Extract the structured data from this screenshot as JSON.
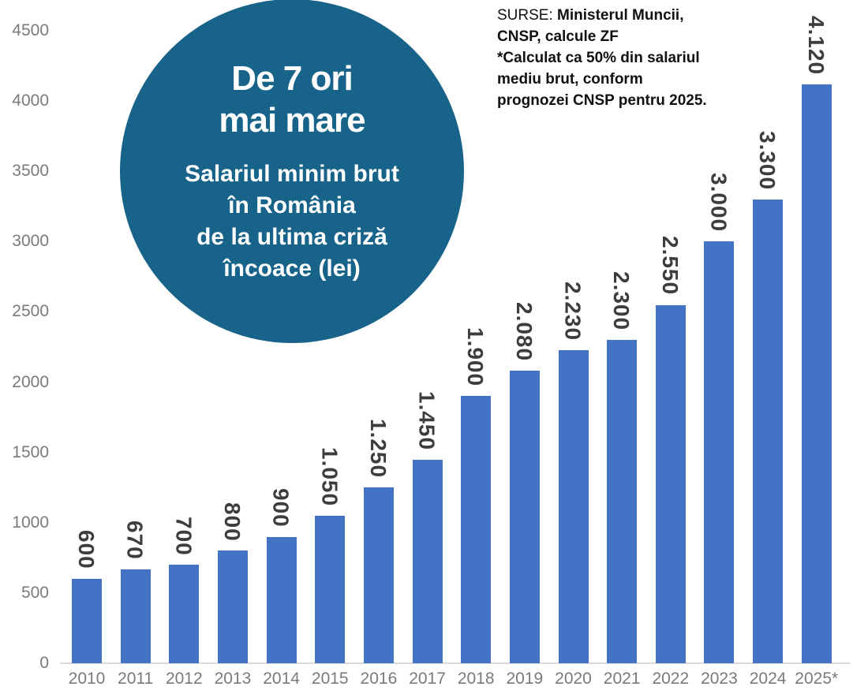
{
  "chart_data": {
    "type": "bar",
    "categories": [
      "2010",
      "2011",
      "2012",
      "2013",
      "2014",
      "2015",
      "2016",
      "2017",
      "2018",
      "2019",
      "2020",
      "2021",
      "2022",
      "2023",
      "2024",
      "2025*"
    ],
    "values": [
      600,
      670,
      700,
      800,
      900,
      1050,
      1250,
      1450,
      1900,
      2080,
      2230,
      2300,
      2550,
      3000,
      3300,
      4120
    ],
    "bar_labels": [
      "600",
      "670",
      "700",
      "800",
      "900",
      "1.050",
      "1.250",
      "1.450",
      "1.900",
      "2.080",
      "2.230",
      "2.300",
      "2.550",
      "3.000",
      "3.300",
      "4.120"
    ],
    "title": "De 7 ori mai mare",
    "subtitle": "Salariul minim brut în România de la ultima criză încoace (lei)",
    "xlabel": "",
    "ylabel": "",
    "ylim": [
      0,
      4500
    ],
    "yticks": [
      0,
      500,
      1000,
      1500,
      2000,
      2500,
      3000,
      3500,
      4000,
      4500
    ],
    "grid": false,
    "legend": false,
    "bar_color": "#4472C4",
    "value_label_color": "#3d3d3d",
    "axis_label_color": "#7a7a7a",
    "axis_line_color": "#d9d9d9"
  },
  "badge": {
    "title_lines": [
      "De 7 ori",
      "mai mare"
    ],
    "subtitle_lines": [
      "Salariul minim brut",
      "în România",
      "de la ultima criză",
      "încoace (lei)"
    ],
    "bg_color": "#17638A",
    "text_color": "#FFFFFF"
  },
  "source": {
    "label": "SURSE:",
    "lines": [
      "Ministerul Muncii,",
      "CNSP, calcule ZF",
      "*Calculat ca 50% din salariul",
      "mediu brut, conform",
      "prognozei CNSP pentru 2025."
    ]
  }
}
